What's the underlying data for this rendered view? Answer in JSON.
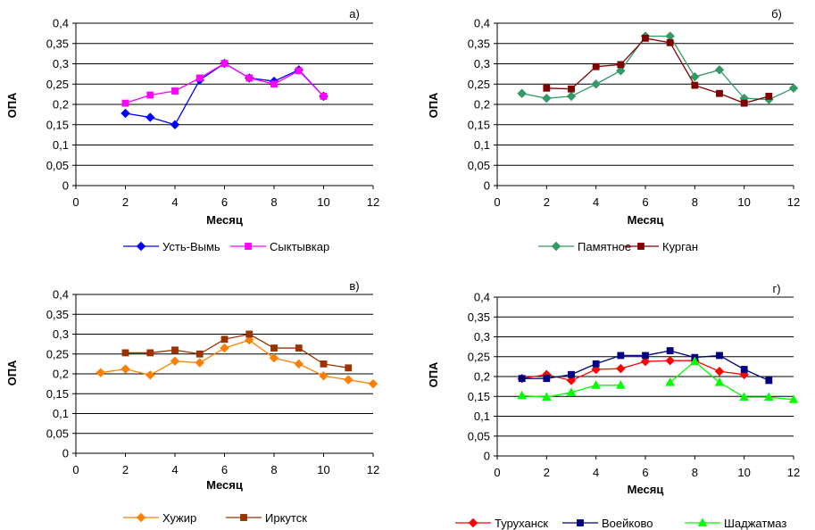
{
  "chart_data": [
    {
      "type": "line",
      "panel_label": "а)",
      "xlabel": "Месяц",
      "ylabel": "ОПА",
      "xlim": [
        0,
        12
      ],
      "ylim": [
        0,
        0.4
      ],
      "x_ticks": [
        "0",
        "2",
        "4",
        "6",
        "8",
        "10",
        "12"
      ],
      "y_ticks": [
        "0",
        "0,05",
        "0,1",
        "0,15",
        "0,2",
        "0,25",
        "0,3",
        "0,35",
        "0,4"
      ],
      "grid": "horizontal",
      "legend_position": "bottom",
      "series": [
        {
          "name": "Усть-Вымь",
          "color": "#0000FF",
          "marker": "diamond",
          "x": [
            2,
            3,
            4,
            5,
            6,
            7,
            8,
            9,
            10
          ],
          "y": [
            0.178,
            0.168,
            0.15,
            0.26,
            0.301,
            0.265,
            0.257,
            0.285,
            0.22
          ]
        },
        {
          "name": "Сыктывкар",
          "color": "#FF00FF",
          "marker": "square",
          "x": [
            2,
            3,
            4,
            5,
            6,
            7,
            8,
            9,
            10
          ],
          "y": [
            0.203,
            0.223,
            0.233,
            0.265,
            0.301,
            0.265,
            0.25,
            0.283,
            0.22
          ]
        }
      ]
    },
    {
      "type": "line",
      "panel_label": "б)",
      "xlabel": "Месяц",
      "ylabel": "ОПА",
      "xlim": [
        0,
        12
      ],
      "ylim": [
        0,
        0.4
      ],
      "x_ticks": [
        "0",
        "2",
        "4",
        "6",
        "8",
        "10",
        "12"
      ],
      "y_ticks": [
        "0",
        "0,05",
        "0,1",
        "0,15",
        "0,2",
        "0,25",
        "0,3",
        "0,35",
        "0,4"
      ],
      "grid": "horizontal",
      "legend_position": "bottom",
      "series": [
        {
          "name": "Памятное",
          "color": "#339966",
          "marker": "diamond",
          "x": [
            1,
            2,
            3,
            4,
            5,
            6,
            7,
            8,
            9,
            10,
            11,
            12
          ],
          "y": [
            0.227,
            0.215,
            0.22,
            0.25,
            0.283,
            0.368,
            0.368,
            0.268,
            0.285,
            0.215,
            0.212,
            0.24
          ]
        },
        {
          "name": "Курган",
          "color": "#800000",
          "marker": "square",
          "x": [
            2,
            3,
            4,
            5,
            6,
            7,
            8,
            9,
            10,
            11
          ],
          "y": [
            0.24,
            0.238,
            0.293,
            0.298,
            0.363,
            0.352,
            0.247,
            0.227,
            0.203,
            0.22
          ]
        }
      ]
    },
    {
      "type": "line",
      "panel_label": "в)",
      "xlabel": "Месяц",
      "ylabel": "ОПА",
      "xlim": [
        0,
        12
      ],
      "ylim": [
        0,
        0.4
      ],
      "x_ticks": [
        "0",
        "2",
        "4",
        "6",
        "8",
        "10",
        "12"
      ],
      "y_ticks": [
        "0",
        "0,05",
        "0,1",
        "0,15",
        "0,2",
        "0,25",
        "0,3",
        "0,35",
        "0,4"
      ],
      "grid": "horizontal",
      "legend_position": "bottom",
      "series": [
        {
          "name": "Хужир",
          "color": "#FF8000",
          "marker": "diamond",
          "x": [
            1,
            2,
            3,
            4,
            5,
            6,
            7,
            8,
            9,
            10,
            11,
            12
          ],
          "y": [
            0.203,
            0.212,
            0.197,
            0.232,
            0.228,
            0.265,
            0.285,
            0.24,
            0.225,
            0.195,
            0.185,
            0.175
          ]
        },
        {
          "name": "Иркутск",
          "color": "#993300",
          "marker": "square",
          "x": [
            2,
            3,
            4,
            5,
            6,
            7,
            8,
            9,
            10,
            11
          ],
          "y": [
            0.253,
            0.253,
            0.26,
            0.25,
            0.287,
            0.3,
            0.265,
            0.265,
            0.225,
            0.215
          ]
        }
      ]
    },
    {
      "type": "line",
      "panel_label": "г)",
      "xlabel": "Месяц",
      "ylabel": "ОПА",
      "xlim": [
        0,
        12
      ],
      "ylim": [
        0,
        0.4
      ],
      "x_ticks": [
        "0",
        "2",
        "4",
        "6",
        "8",
        "10",
        "12"
      ],
      "y_ticks": [
        "0",
        "0,05",
        "0,1",
        "0,15",
        "0,2",
        "0,25",
        "0,3",
        "0,35",
        "0,4"
      ],
      "grid": "horizontal",
      "legend_position": "bottom",
      "series": [
        {
          "name": "Туруханск",
          "color": "#FF0000",
          "marker": "diamond",
          "x": [
            1,
            2,
            3,
            4,
            5,
            6,
            7,
            8,
            9,
            10
          ],
          "y": [
            0.195,
            0.205,
            0.19,
            0.218,
            0.22,
            0.238,
            0.24,
            0.24,
            0.213,
            0.205
          ]
        },
        {
          "name": "Воейково",
          "color": "#000080",
          "marker": "square",
          "x": [
            1,
            2,
            3,
            4,
            5,
            6,
            7,
            8,
            9,
            10,
            11
          ],
          "y": [
            0.195,
            0.195,
            0.205,
            0.232,
            0.253,
            0.253,
            0.265,
            0.248,
            0.253,
            0.218,
            0.19
          ]
        },
        {
          "name": "Шаджатмаз",
          "color": "#00FF00",
          "marker": "triangle",
          "x": [
            1,
            2,
            3,
            4,
            5,
            null,
            7,
            8,
            9,
            10,
            11,
            12
          ],
          "y": [
            0.152,
            0.148,
            0.16,
            0.178,
            0.178,
            null,
            0.185,
            0.238,
            0.185,
            0.148,
            0.148,
            0.142
          ]
        }
      ]
    }
  ]
}
